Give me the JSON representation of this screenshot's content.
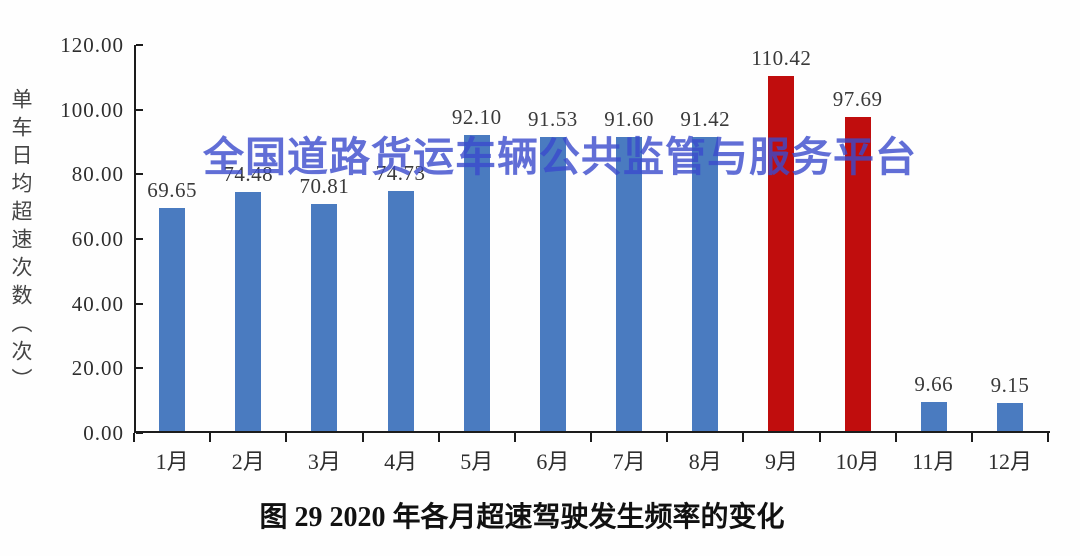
{
  "figure": {
    "caption": "图 29 2020 年各月超速驾驶发生频率的变化",
    "watermark_text": "全国道路货运车辆公共监管与服务平台"
  },
  "chart_data": {
    "type": "bar",
    "title": "图 29 2020 年各月超速驾驶发生频率的变化",
    "categories": [
      "1月",
      "2月",
      "3月",
      "4月",
      "5月",
      "6月",
      "7月",
      "8月",
      "9月",
      "10月",
      "11月",
      "12月"
    ],
    "values": [
      69.65,
      74.48,
      70.81,
      74.73,
      92.1,
      91.53,
      91.6,
      91.42,
      110.42,
      97.69,
      9.66,
      9.15
    ],
    "data_labels": [
      "69.65",
      "74.48",
      "70.81",
      "74.73",
      "92.10",
      "91.53",
      "91.60",
      "91.42",
      "110.42",
      "97.69",
      "9.66",
      "9.15"
    ],
    "highlighted_categories": [
      "9月",
      "10月"
    ],
    "xlabel": "",
    "ylabel": "单车日均超速次数（次）",
    "ylim": [
      0,
      120
    ],
    "ytick_step": 20,
    "ytick_labels": [
      "0.00",
      "20.00",
      "40.00",
      "60.00",
      "80.00",
      "100.00",
      "120.00"
    ],
    "grid": false,
    "legend": null
  },
  "colors": {
    "bar_default": "#4a7bc0",
    "bar_highlight": "#c00d0d",
    "watermark": "#3b4bcd",
    "axis": "#1c1c1c",
    "label_text": "#3a3a3a"
  }
}
